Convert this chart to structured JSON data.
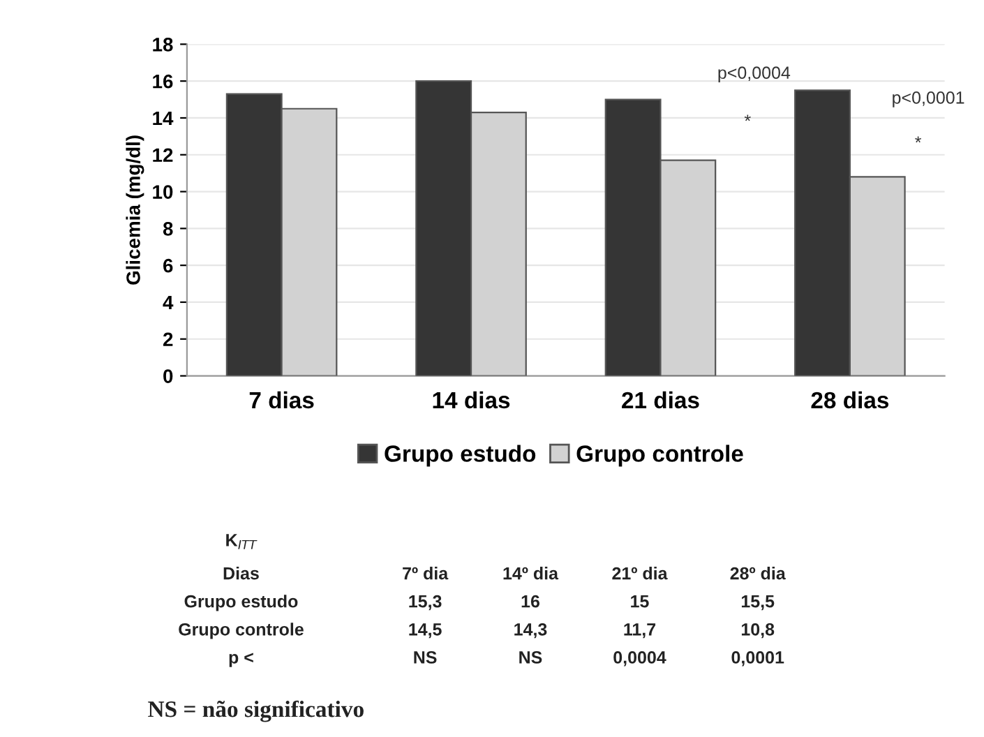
{
  "chart_data": {
    "type": "bar",
    "ylabel": "Glicemia (mg/dl)",
    "categories": [
      "7 dias",
      "14 dias",
      "21 dias",
      "28 dias"
    ],
    "series": [
      {
        "name": "Grupo estudo",
        "color": "#353535",
        "values": [
          15.3,
          16,
          15,
          15.5
        ]
      },
      {
        "name": "Grupo controle",
        "color": "#d2d2d2",
        "values": [
          14.5,
          14.3,
          11.7,
          10.8
        ]
      }
    ],
    "ylim": [
      0,
      18
    ],
    "yticks": [
      0,
      2,
      4,
      6,
      8,
      10,
      12,
      14,
      16,
      18
    ],
    "grid": "y",
    "legend": "bottom",
    "annotations": [
      "p<0,0004",
      "*",
      "p<0,0001",
      "*",
      "K$_{ITT}$",
      "Dias",
      "7º dia",
      "14º dia",
      "21º dia",
      "28º dia",
      "15,3",
      "16",
      "15",
      "15,5",
      "14,5",
      "14,3",
      "11,7",
      "10,8",
      "p <",
      "NS",
      "NS",
      "0,0004",
      "0,0001",
      "NS = não significativo"
    ]
  }
}
